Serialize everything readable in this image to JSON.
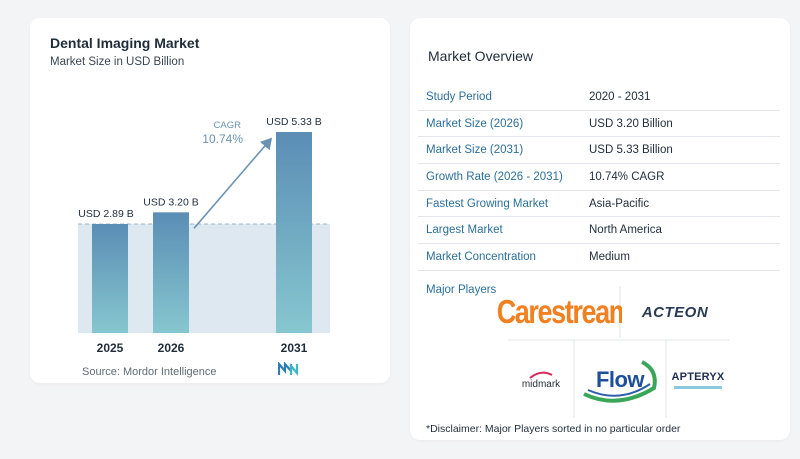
{
  "chart": {
    "title": "Dental Imaging Market",
    "subtitle": "Market Size in USD Billion",
    "source": "Source:  Mordor Intelligence"
  },
  "chart_data": {
    "type": "bar",
    "title": "Dental Imaging Market",
    "subtitle": "Market Size in USD Billion",
    "categories": [
      "2025",
      "2026",
      "2031"
    ],
    "values": [
      2.89,
      3.2,
      5.33
    ],
    "data_labels": [
      "USD 2.89 B",
      "USD 3.20 B",
      "USD 5.33 B"
    ],
    "ylim": [
      0,
      5.33
    ],
    "grid": false,
    "annotation": {
      "label": "CAGR",
      "value": "10.74%",
      "from": "2026",
      "to": "2031"
    },
    "colors": {
      "bar_top": "#5b8db5",
      "bar_bottom": "#86c7cf",
      "band": "#dde8f1",
      "arrow": "#6a93b3"
    }
  },
  "overview": {
    "title": "Market Overview",
    "rows": [
      {
        "key": "Study Period",
        "value": "2020 - 2031"
      },
      {
        "key": "Market Size (2026)",
        "value": "USD 3.20 Billion"
      },
      {
        "key": "Market Size (2031)",
        "value": "USD 5.33 Billion"
      },
      {
        "key": "Growth Rate (2026 - 2031)",
        "value": "10.74% CAGR"
      },
      {
        "key": "Fastest Growing Market",
        "value": "Asia-Pacific"
      },
      {
        "key": "Largest Market",
        "value": "North America"
      },
      {
        "key": "Market Concentration",
        "value": "Medium"
      }
    ],
    "players_label": "Major Players",
    "players": [
      "Carestream",
      "ACTEON",
      "midmark",
      "Flow",
      "APTERYX"
    ],
    "disclaimer": "*Disclaimer: Major Players sorted in no particular order"
  }
}
